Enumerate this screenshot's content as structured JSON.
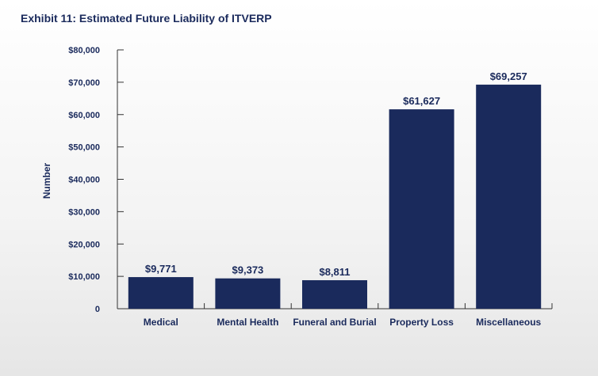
{
  "title": "Exhibit 11: Estimated Future Liability of ITVERP",
  "chart_data": {
    "type": "bar",
    "title": "Exhibit 11: Estimated Future Liability of ITVERP",
    "xlabel": "",
    "ylabel": "Number",
    "categories": [
      "Medical",
      "Mental Health",
      "Funeral and Burial",
      "Property Loss",
      "Miscellaneous"
    ],
    "values": [
      9771,
      9373,
      8811,
      61627,
      69257
    ],
    "value_labels": [
      "$9,771",
      "$9,373",
      "$8,811",
      "$61,627",
      "$69,257"
    ],
    "ylim": [
      0,
      80000
    ],
    "yticks": [
      0,
      10000,
      20000,
      30000,
      40000,
      50000,
      60000,
      70000,
      80000
    ],
    "ytick_labels": [
      "0",
      "$10,000",
      "$20,000",
      "$30,000",
      "$40,000",
      "$50,000",
      "$60,000",
      "$70,000",
      "$80,000"
    ],
    "grid": false,
    "bar_color": "#1a2a5c",
    "text_color": "#1a2a5c"
  }
}
